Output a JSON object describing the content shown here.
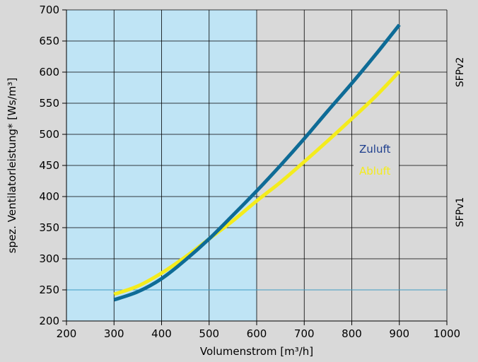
{
  "chart_data": {
    "type": "line",
    "xlabel": "Volumenstrom [m³/h]",
    "ylabel": "spez. Ventilatorleistung* [Ws/m³]",
    "xlim": [
      200,
      1000
    ],
    "ylim": [
      200,
      700
    ],
    "xticks": [
      200,
      300,
      400,
      500,
      600,
      700,
      800,
      900,
      1000
    ],
    "yticks": [
      200,
      250,
      300,
      350,
      400,
      450,
      500,
      550,
      600,
      650,
      700
    ],
    "grid": true,
    "shaded_region": {
      "x_from": 200,
      "x_to": 600,
      "color": "#bfe4f5"
    },
    "reference_line": {
      "y": 250,
      "color": "#3e9cc4"
    },
    "zone_labels": [
      {
        "text": "SFPv2",
        "y_center": 600
      },
      {
        "text": "SFPv1",
        "y_center": 375
      }
    ],
    "series": [
      {
        "name": "Zuluft",
        "color": "#0e6b96",
        "legend_color": "#1c3d8c",
        "x": [
          300,
          350,
          400,
          450,
          500,
          550,
          600,
          650,
          700,
          750,
          800,
          850,
          900
        ],
        "y": [
          234,
          247,
          268,
          298,
          332,
          370,
          409,
          450,
          493,
          538,
          582,
          628,
          676
        ]
      },
      {
        "name": "Abluft",
        "color": "#f4ec1c",
        "legend_color": "#f4ec1c",
        "x": [
          300,
          350,
          400,
          450,
          500,
          550,
          600,
          650,
          700,
          750,
          800,
          850,
          900
        ],
        "y": [
          243,
          256,
          277,
          303,
          332,
          361,
          393,
          423,
          456,
          490,
          525,
          561,
          601
        ]
      }
    ]
  }
}
